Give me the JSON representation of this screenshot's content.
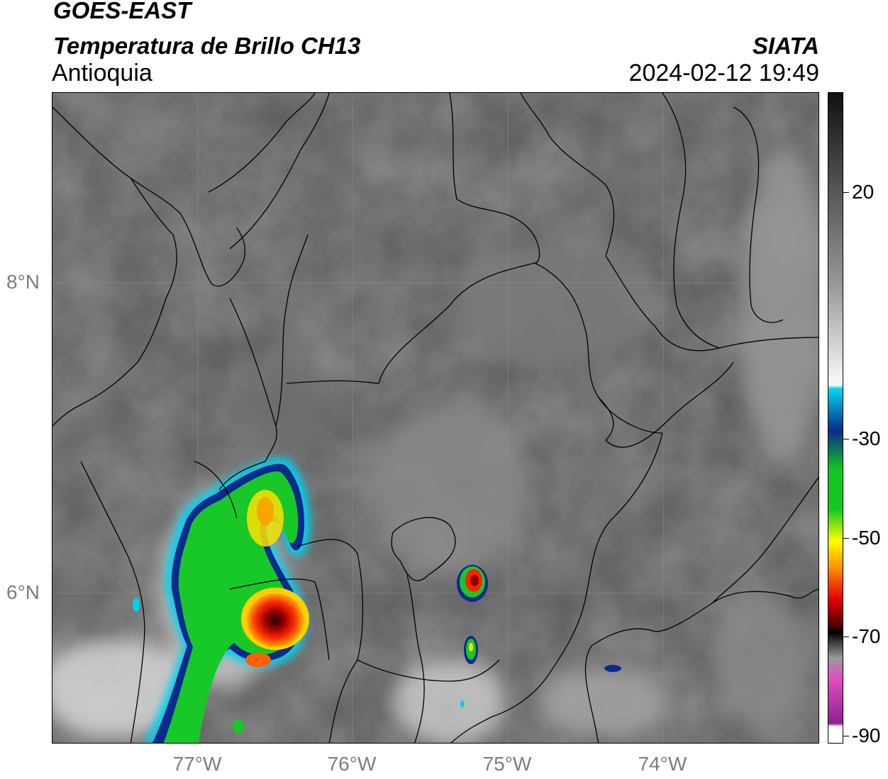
{
  "header": {
    "title_line1": "GOES-EAST",
    "title_line2": "Temperatura de Brillo CH13",
    "region": "Antioquia",
    "agency": "SIATA",
    "datetime": "2024-02-12 19:49"
  },
  "map": {
    "latitude_labels": [
      "8°N",
      "6°N"
    ],
    "longitude_labels": [
      "77°W",
      "76°W",
      "75°W",
      "74°W"
    ],
    "colors": {
      "background_gray": "#5a5a5a",
      "border_lines": "#000000",
      "gridlines": "#8c8c8c"
    }
  },
  "colorbar": {
    "tick_labels": [
      "20",
      "-30",
      "-50",
      "-70",
      "-90"
    ],
    "colors": {
      "warm_top": "#111111",
      "gray_mid": "#9a9a9a",
      "white": "#f5f5f5",
      "cyan": "#00d8f0",
      "blue": "#0a2a8c",
      "green": "#10c820",
      "yellow": "#ffff00",
      "orange": "#ff9000",
      "red": "#e00000",
      "dark_red": "#500000",
      "black": "#000000",
      "pink": "#e050c0",
      "purple": "#902090"
    }
  }
}
